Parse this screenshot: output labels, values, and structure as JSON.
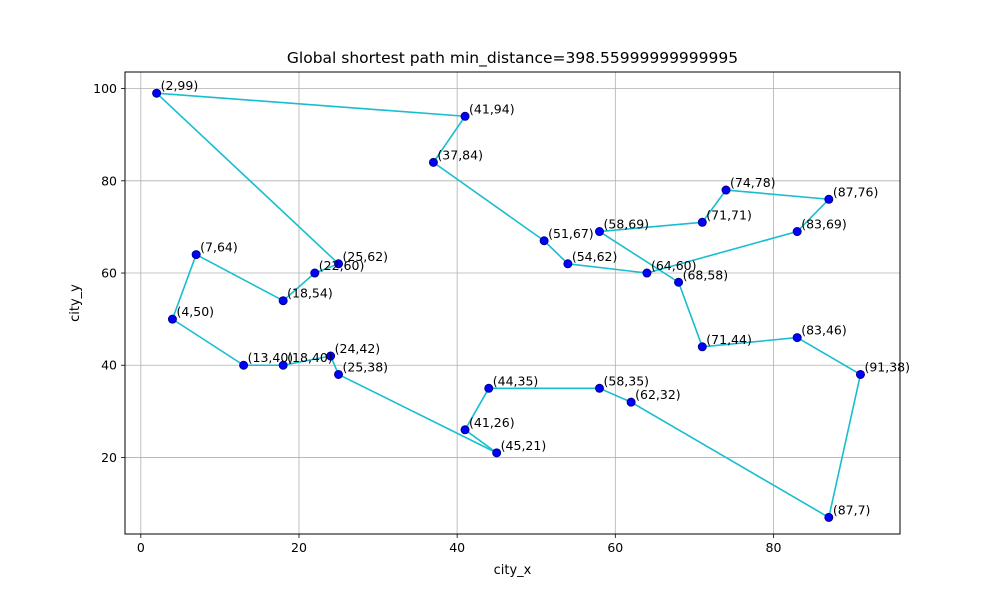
{
  "chart_data": {
    "type": "scatter",
    "title": "Global shortest path  min_distance=398.55999999999995",
    "xlabel": "city_x",
    "ylabel": "city_y",
    "xlim": [
      -2,
      96
    ],
    "ylim": [
      3.4,
      103.6
    ],
    "x_ticks": [
      0,
      20,
      40,
      60,
      80
    ],
    "y_ticks": [
      20,
      40,
      60,
      80,
      100
    ],
    "grid": true,
    "colors": {
      "path": "#17becf",
      "point": "#0000ff",
      "point_edge": "#00008b"
    },
    "points": [
      {
        "x": 2,
        "y": 99,
        "label": "(2,99)"
      },
      {
        "x": 41,
        "y": 94,
        "label": "(41,94)"
      },
      {
        "x": 37,
        "y": 84,
        "label": "(37,84)"
      },
      {
        "x": 51,
        "y": 67,
        "label": "(51,67)"
      },
      {
        "x": 54,
        "y": 62,
        "label": "(54,62)"
      },
      {
        "x": 64,
        "y": 60,
        "label": "(64,60)"
      },
      {
        "x": 83,
        "y": 69,
        "label": "(83,69)"
      },
      {
        "x": 87,
        "y": 76,
        "label": "(87,76)"
      },
      {
        "x": 74,
        "y": 78,
        "label": "(74,78)"
      },
      {
        "x": 71,
        "y": 71,
        "label": "(71,71)"
      },
      {
        "x": 58,
        "y": 69,
        "label": "(58,69)"
      },
      {
        "x": 68,
        "y": 58,
        "label": "(68,58)"
      },
      {
        "x": 71,
        "y": 44,
        "label": "(71,44)"
      },
      {
        "x": 83,
        "y": 46,
        "label": "(83,46)"
      },
      {
        "x": 91,
        "y": 38,
        "label": "(91,38)"
      },
      {
        "x": 87,
        "y": 7,
        "label": "(87,7)"
      },
      {
        "x": 62,
        "y": 32,
        "label": "(62,32)"
      },
      {
        "x": 58,
        "y": 35,
        "label": "(58,35)"
      },
      {
        "x": 44,
        "y": 35,
        "label": "(44,35)"
      },
      {
        "x": 41,
        "y": 26,
        "label": "(41,26)"
      },
      {
        "x": 45,
        "y": 21,
        "label": "(45,21)"
      },
      {
        "x": 25,
        "y": 38,
        "label": "(25,38)"
      },
      {
        "x": 24,
        "y": 42,
        "label": "(24,42)"
      },
      {
        "x": 18,
        "y": 40,
        "label": "(18,40)"
      },
      {
        "x": 13,
        "y": 40,
        "label": "(13,40)"
      },
      {
        "x": 4,
        "y": 50,
        "label": "(4,50)"
      },
      {
        "x": 7,
        "y": 64,
        "label": "(7,64)"
      },
      {
        "x": 18,
        "y": 54,
        "label": "(18,54)"
      },
      {
        "x": 22,
        "y": 60,
        "label": "(22,60)"
      },
      {
        "x": 25,
        "y": 62,
        "label": "(25,62)"
      }
    ]
  }
}
